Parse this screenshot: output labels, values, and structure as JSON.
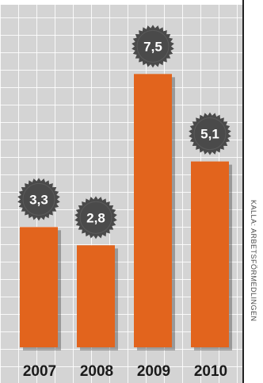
{
  "credit_text": "KALLA: ARBETSFÖRMEDLINGEN",
  "colors": {
    "bar": "#e2641d",
    "badge": "#4a4a4a",
    "grid_bg": "#d4d4d4"
  },
  "chart_data": {
    "type": "bar",
    "categories": [
      "2007",
      "2008",
      "2009",
      "2010"
    ],
    "values": [
      3.3,
      2.8,
      7.5,
      5.1
    ],
    "value_labels": [
      "3,3",
      "2,8",
      "7,5",
      "5,1"
    ],
    "ylim": [
      0,
      9.4
    ],
    "grid": true,
    "legend": "none"
  }
}
